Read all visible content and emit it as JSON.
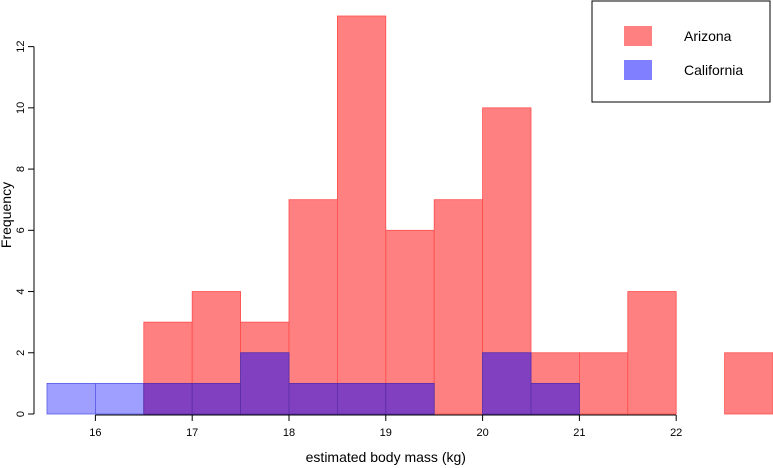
{
  "chart_data": {
    "type": "bar",
    "subtype": "overlapping-histogram",
    "title": "",
    "xlabel": "estimated body mass (kg)",
    "ylabel": "Frequency",
    "xlim": [
      15.5,
      23.0
    ],
    "ylim": [
      0,
      13
    ],
    "x_ticks": [
      16,
      17,
      18,
      19,
      20,
      21,
      22
    ],
    "y_ticks": [
      0,
      2,
      4,
      6,
      8,
      10,
      12
    ],
    "bin_width": 0.5,
    "bin_starts": [
      15.5,
      16.0,
      16.5,
      17.0,
      17.5,
      18.0,
      18.5,
      19.0,
      19.5,
      20.0,
      20.5,
      21.0,
      21.5,
      22.0,
      22.5
    ],
    "series": [
      {
        "name": "Arizona",
        "color": "#ff8080",
        "edge_color": "#ff4d4d",
        "values": [
          0,
          0,
          3,
          4,
          3,
          7,
          13,
          6,
          7,
          10,
          2,
          2,
          4,
          0,
          2
        ]
      },
      {
        "name": "California",
        "color": "#7f7fff",
        "edge_color": "#5a5ae6",
        "values": [
          1,
          1,
          1,
          1,
          2,
          1,
          1,
          1,
          0,
          2,
          1,
          0,
          0,
          0,
          0
        ]
      }
    ],
    "overlap_color": "#8040bf",
    "legend": {
      "position": "top-right"
    }
  }
}
